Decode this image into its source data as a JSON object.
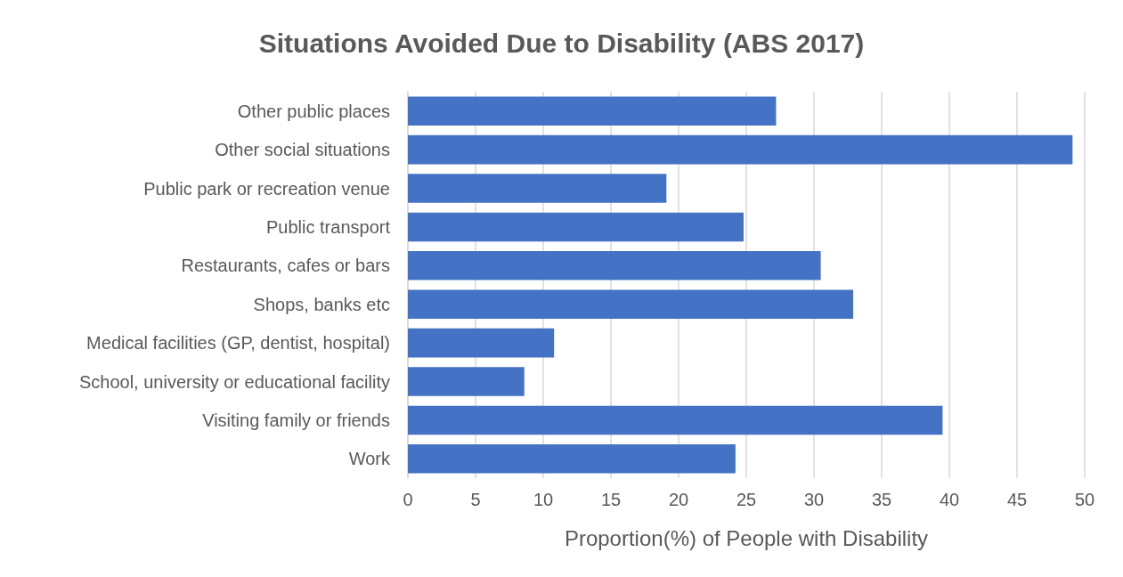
{
  "chart_data": {
    "type": "bar",
    "orientation": "horizontal",
    "title": "Situations Avoided Due to Disability (ABS 2017)",
    "xlabel": "Proportion(%) of People with Disability",
    "categories": [
      "Other public places",
      "Other social situations",
      "Public park or recreation venue",
      "Public transport",
      "Restaurants, cafes or bars",
      "Shops, banks etc",
      "Medical facilities (GP, dentist, hospital)",
      "School, university or educational facility",
      "Visiting family or friends",
      "Work"
    ],
    "values": [
      27.2,
      49.1,
      19.1,
      24.8,
      30.5,
      32.9,
      10.8,
      8.6,
      39.5,
      24.2
    ],
    "color": "#4472c4",
    "xlim": [
      0,
      50
    ],
    "xticks": [
      0,
      5,
      10,
      15,
      20,
      25,
      30,
      35,
      40,
      45,
      50
    ],
    "grid": "x"
  }
}
